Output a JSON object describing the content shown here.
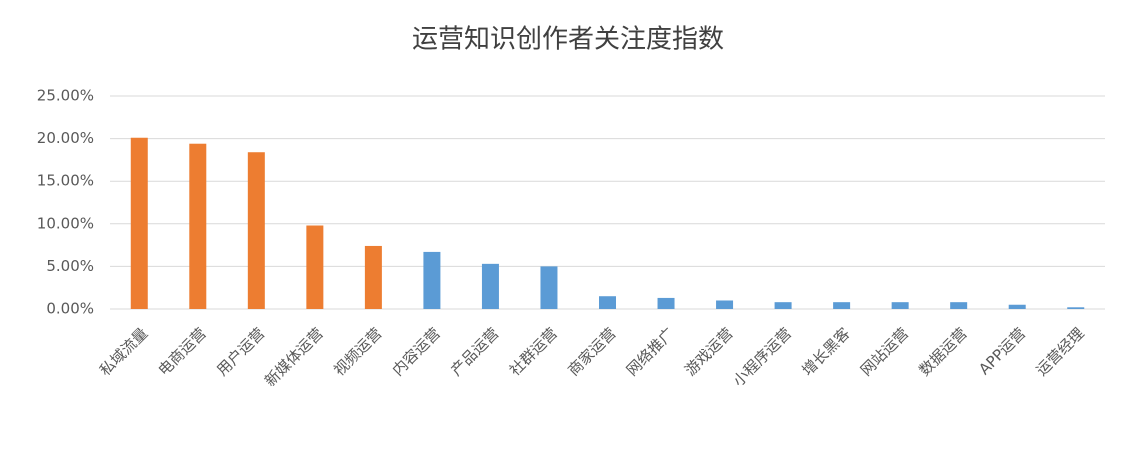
{
  "chart_data": {
    "type": "bar",
    "title": "运营知识创作者关注度指数",
    "categories": [
      "私域流量",
      "电商运营",
      "用户运营",
      "新媒体运营",
      "视频运营",
      "内容运营",
      "产品运营",
      "社群运营",
      "商家运营",
      "网络推广",
      "游戏运营",
      "小程序运营",
      "增长黑客",
      "网站运营",
      "数据运营",
      "APP运营",
      "运营经理"
    ],
    "values": [
      20.1,
      19.4,
      18.4,
      9.8,
      7.4,
      6.7,
      5.3,
      5.0,
      1.5,
      1.3,
      1.0,
      0.8,
      0.8,
      0.8,
      0.8,
      0.5,
      0.2
    ],
    "colors": [
      "#ed7d31",
      "#ed7d31",
      "#ed7d31",
      "#ed7d31",
      "#ed7d31",
      "#5b9bd5",
      "#5b9bd5",
      "#5b9bd5",
      "#5b9bd5",
      "#5b9bd5",
      "#5b9bd5",
      "#5b9bd5",
      "#5b9bd5",
      "#5b9bd5",
      "#5b9bd5",
      "#5b9bd5",
      "#5b9bd5"
    ],
    "ylim": [
      0,
      25
    ],
    "yticks": [
      {
        "value": 0,
        "label": "0.00%"
      },
      {
        "value": 5,
        "label": "5.00%"
      },
      {
        "value": 10,
        "label": "10.00%"
      },
      {
        "value": 15,
        "label": "15.00%"
      },
      {
        "value": 20,
        "label": "20.00%"
      },
      {
        "value": 25,
        "label": "25.00%"
      }
    ],
    "grid": true
  }
}
